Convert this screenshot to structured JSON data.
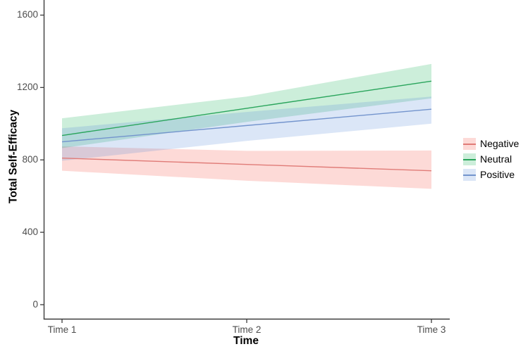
{
  "chart_data": {
    "type": "line",
    "title": "",
    "xlabel": "Time",
    "ylabel": "Total Self-Efficacy",
    "categories": [
      "Time 1",
      "Time 2",
      "Time 3"
    ],
    "yticks": [
      1600,
      1200,
      800,
      400,
      0
    ],
    "ytick_labels": [
      "1600",
      "1200",
      "800",
      "400",
      "0"
    ],
    "ylim": [
      -80,
      1690
    ],
    "grid": false,
    "legend_position": "right",
    "axis_color": "#3c3c3c",
    "tick_text_color": "#4d4d4d",
    "series": [
      {
        "name": "Negative",
        "values": [
          810,
          775,
          740
        ],
        "ci_lower": [
          740,
          685,
          640
        ],
        "ci_upper": [
          875,
          850,
          852
        ],
        "line_color": "#e07c78",
        "fill_color": "rgba(248,118,109,0.27)"
      },
      {
        "name": "Neutral",
        "values": [
          935,
          1085,
          1235
        ],
        "ci_lower": [
          865,
          1010,
          1140
        ],
        "ci_upper": [
          1030,
          1150,
          1330
        ],
        "line_color": "#2aa55c",
        "fill_color": "rgba(0,172,70,0.20)"
      },
      {
        "name": "Positive",
        "values": [
          900,
          990,
          1080
        ],
        "ci_lower": [
          795,
          905,
          1000
        ],
        "ci_upper": [
          975,
          1065,
          1150
        ],
        "line_color": "#7394cd",
        "fill_color": "rgba(92,140,218,0.22)"
      }
    ]
  }
}
